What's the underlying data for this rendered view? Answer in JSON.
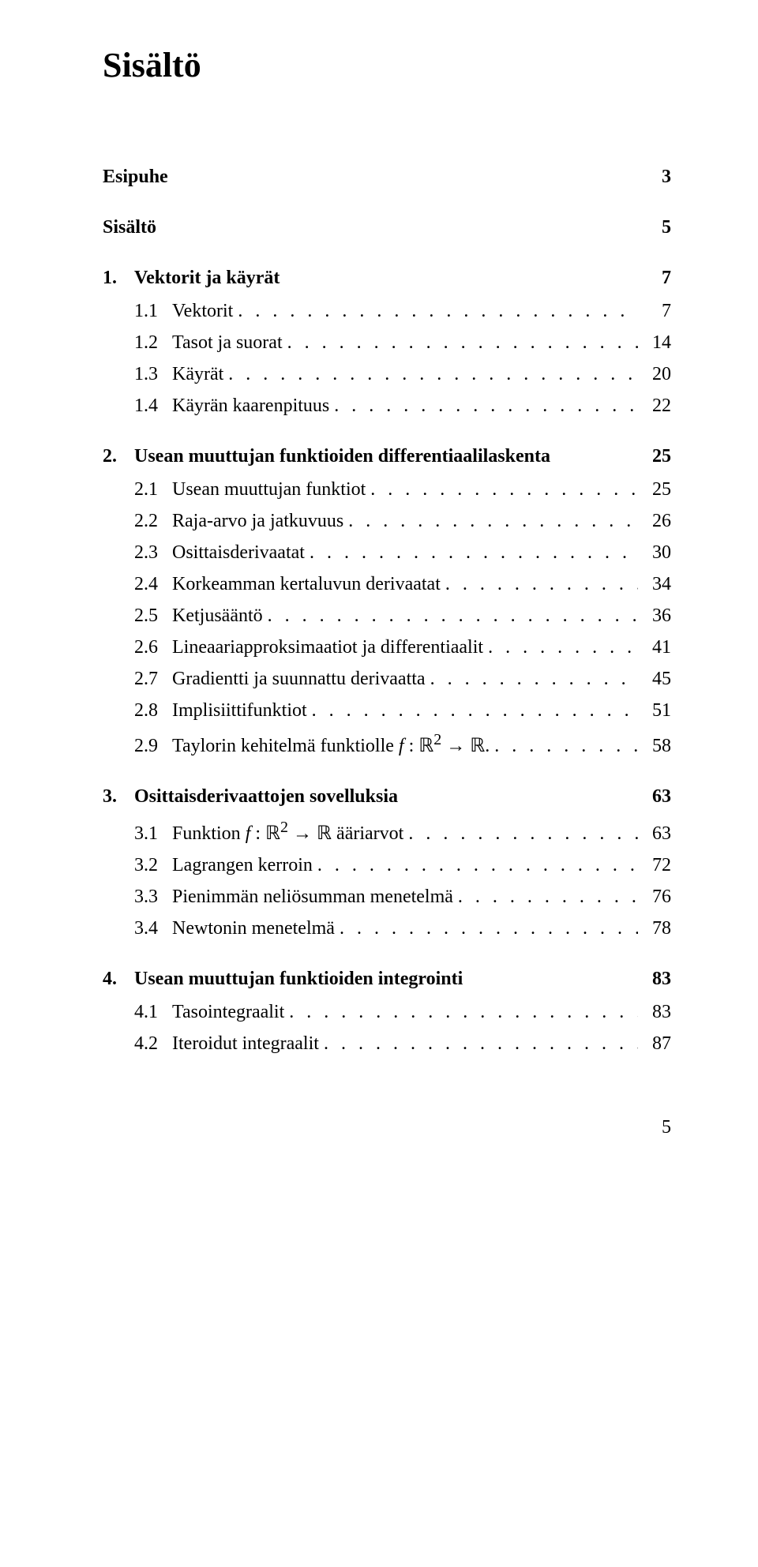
{
  "title": "Sisältö",
  "page_number": "5",
  "dot_fill": ". . . . . . . . . . . . . . . . . . . . . . . . . . . . . . . . . . . . . . . . . . . . . . . . . . . . . . . . . . . . . . . . . . . . . . . . . . . . . . . . . . . .",
  "chapters": [
    {
      "num": "",
      "title": "Esipuhe",
      "page": "3",
      "sections": []
    },
    {
      "num": "",
      "title": "Sisältö",
      "page": "5",
      "sections": []
    },
    {
      "num": "1.",
      "title": "Vektorit ja käyrät",
      "page": "7",
      "sections": [
        {
          "num": "1.1",
          "title": "Vektorit",
          "page": "7"
        },
        {
          "num": "1.2",
          "title": "Tasot ja suorat",
          "page": "14"
        },
        {
          "num": "1.3",
          "title": "Käyrät",
          "page": "20"
        },
        {
          "num": "1.4",
          "title": "Käyrän kaarenpituus",
          "page": "22"
        }
      ]
    },
    {
      "num": "2.",
      "title": "Usean muuttujan funktioiden differentiaalilaskenta",
      "page": "25",
      "sections": [
        {
          "num": "2.1",
          "title": "Usean muuttujan funktiot",
          "page": "25"
        },
        {
          "num": "2.2",
          "title": "Raja-arvo ja jatkuvuus",
          "page": "26"
        },
        {
          "num": "2.3",
          "title": "Osittaisderivaatat",
          "page": "30"
        },
        {
          "num": "2.4",
          "title": "Korkeamman kertaluvun derivaatat",
          "page": "34"
        },
        {
          "num": "2.5",
          "title": "Ketjusääntö",
          "page": "36"
        },
        {
          "num": "2.6",
          "title": "Lineaariapproksimaatiot ja differentiaalit",
          "page": "41"
        },
        {
          "num": "2.7",
          "title": "Gradientti ja suunnattu derivaatta",
          "page": "45"
        },
        {
          "num": "2.8",
          "title": "Implisiittifunktiot",
          "page": "51"
        },
        {
          "num": "2.9",
          "title_html": "Taylorin kehitelmä funktiolle <i>f</i> : ℝ<sup>2</sup> → ℝ.",
          "page": "58"
        }
      ]
    },
    {
      "num": "3.",
      "title": "Osittaisderivaattojen sovelluksia",
      "page": "63",
      "sections": [
        {
          "num": "3.1",
          "title_html": "Funktion <i>f</i> : ℝ<sup>2</sup> → ℝ ääriarvot",
          "page": "63"
        },
        {
          "num": "3.2",
          "title": "Lagrangen kerroin",
          "page": "72"
        },
        {
          "num": "3.3",
          "title": "Pienimmän neliösumman menetelmä",
          "page": "76"
        },
        {
          "num": "3.4",
          "title": "Newtonin menetelmä",
          "page": "78"
        }
      ]
    },
    {
      "num": "4.",
      "title": "Usean muuttujan funktioiden integrointi",
      "page": "83",
      "sections": [
        {
          "num": "4.1",
          "title": "Tasointegraalit",
          "page": "83"
        },
        {
          "num": "4.2",
          "title": "Iteroidut integraalit",
          "page": "87"
        }
      ]
    }
  ]
}
